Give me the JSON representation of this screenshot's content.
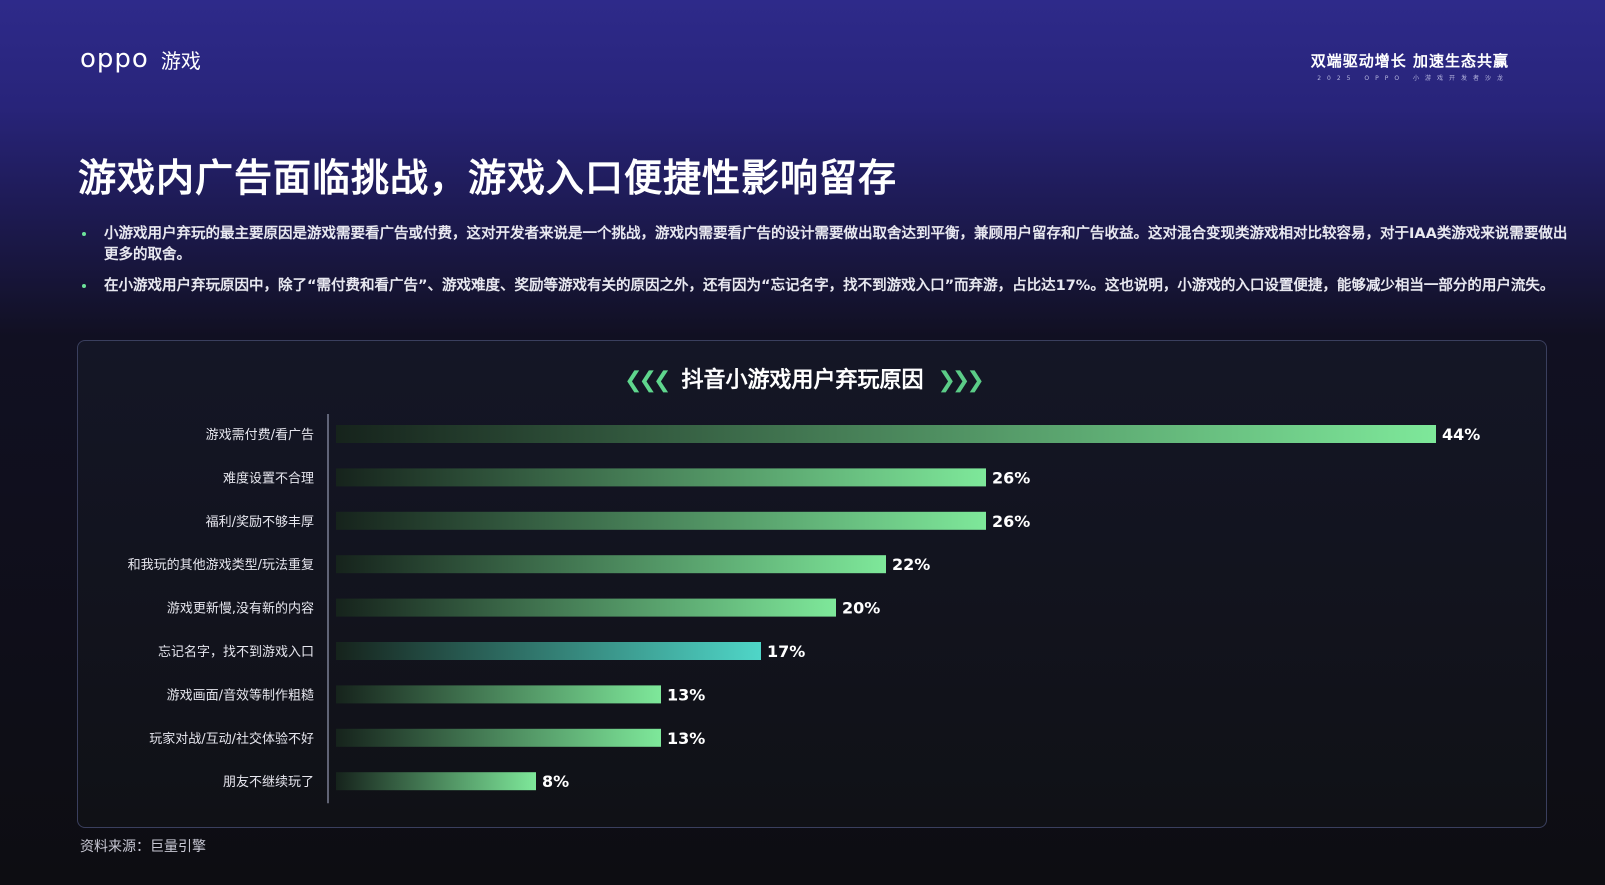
{
  "header": {
    "logo": "oppo",
    "brand_suffix": "游戏",
    "slogan": "双端驱动增长 加速生态共赢",
    "slogan_sub": "2025 OPPO 小游戏开发者沙龙"
  },
  "title": "游戏内广告面临挑战，游戏入口便捷性影响留存",
  "bullets": [
    "小游戏用户弃玩的最主要原因是游戏需要看广告或付费，这对开发者来说是一个挑战，游戏内需要看广告的设计需要做出取舍达到平衡，兼顾用户留存和广告收益。这对混合变现类游戏相对比较容易，对于IAA类游戏来说需要做出更多的取舍。",
    "在小游戏用户弃玩原因中，除了“需付费和看广告”、游戏难度、奖励等游戏有关的原因之外，还有因为“忘记名字，找不到游戏入口”而弃游，占比达17%。这也说明，小游戏的入口设置便捷，能够减少相当一部分的用户流失。"
  ],
  "chart_title_decor": {
    "left": "❮❮❮",
    "right": "❯❯❯"
  },
  "chart_data": {
    "type": "bar",
    "orientation": "horizontal",
    "title": "抖音小游戏用户弃玩原因",
    "categories": [
      "游戏需付费/看广告",
      "难度设置不合理",
      "福利/奖励不够丰厚",
      "和我玩的其他游戏类型/玩法重复",
      "游戏更新慢,没有新的内容",
      "忘记名字，找不到游戏入口",
      "游戏画面/音效等制作粗糙",
      "玩家对战/互动/社交体验不好",
      "朋友不继续玩了"
    ],
    "values": [
      44,
      26,
      26,
      22,
      20,
      17,
      13,
      13,
      8
    ],
    "value_labels": [
      "44%",
      "26%",
      "26%",
      "22%",
      "20%",
      "17%",
      "13%",
      "13%",
      "8%"
    ],
    "unit": "%",
    "xlim": [
      0,
      44
    ],
    "grid": false,
    "highlight_index": 5,
    "colors": {
      "bar": "#7ee89a",
      "highlight": "#4fd6c8",
      "fade": "#16231c"
    }
  },
  "source": "资料来源：巨量引擎"
}
